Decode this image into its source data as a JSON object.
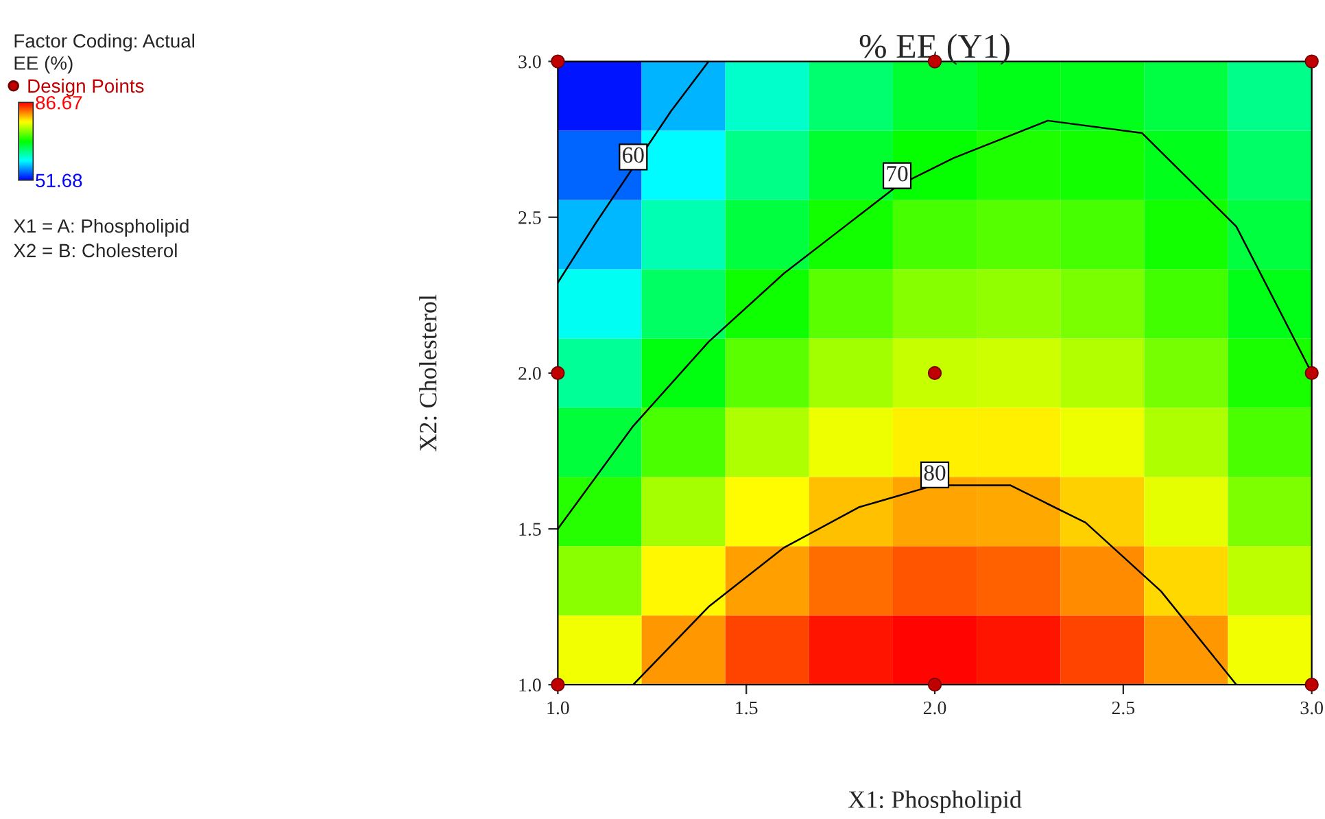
{
  "chart_data": {
    "type": "heatmap",
    "title": "% EE (Y1)",
    "xlabel": "X1: Phospholipid",
    "ylabel": "X2: Cholesterol",
    "clabel": "EE (%)",
    "annotations": [
      "Factor Coding: Actual",
      "X1 = A: Phospholipid",
      "X2 = B: Cholesterol"
    ],
    "xlim": [
      1,
      3
    ],
    "ylim": [
      1,
      3
    ],
    "xticks": [
      {
        "value": 1,
        "label": "1.0"
      },
      {
        "value": 1.5,
        "label": "1.5"
      },
      {
        "value": 2,
        "label": "2.0"
      },
      {
        "value": 2.5,
        "label": "2.5"
      },
      {
        "value": 3,
        "label": "3.0"
      }
    ],
    "yticks": [
      {
        "value": 1,
        "label": "1.0"
      },
      {
        "value": 1.5,
        "label": "1.5"
      },
      {
        "value": 2,
        "label": "2.0"
      },
      {
        "value": 2.5,
        "label": "2.5"
      },
      {
        "value": 3,
        "label": "3.0"
      }
    ],
    "clim": [
      51.68,
      86.67
    ],
    "cticks": [
      {
        "value": 51.68,
        "label": "51.68"
      },
      {
        "value": 86.67,
        "label": "86.67"
      }
    ],
    "cells": [
      [
        52.5,
        57.9,
        62.3,
        65.4,
        67.5,
        68.4,
        68.3,
        66.9,
        64.5
      ],
      [
        55.2,
        60.4,
        64.6,
        67.6,
        69.4,
        70.2,
        69.8,
        68.3,
        65.7
      ],
      [
        58.0,
        63.1,
        67.0,
        69.8,
        71.5,
        72.1,
        71.5,
        69.8,
        67.0
      ],
      [
        60.9,
        65.8,
        69.6,
        72.2,
        73.7,
        74.1,
        73.3,
        71.4,
        68.4
      ],
      [
        64.0,
        68.7,
        72.3,
        74.7,
        76.0,
        76.2,
        75.3,
        73.2,
        70.0
      ],
      [
        67.2,
        71.7,
        75.1,
        77.3,
        78.4,
        78.4,
        77.3,
        75.1,
        71.7
      ],
      [
        70.5,
        74.8,
        78.0,
        80.1,
        81.0,
        80.8,
        79.5,
        77.1,
        73.5
      ],
      [
        73.9,
        78.1,
        81.1,
        82.9,
        83.7,
        83.3,
        81.8,
        79.2,
        75.6
      ],
      [
        77.5,
        81.4,
        84.3,
        85.9,
        86.5,
        85.9,
        84.3,
        81.4,
        77.5
      ]
    ],
    "series": [
      {
        "type": "line",
        "name": "60",
        "color": "#000000",
        "x": [
          1.0,
          1.1,
          1.2,
          1.3,
          1.4
        ],
        "values": [
          2.29,
          2.48,
          2.66,
          2.84,
          3.0
        ]
      },
      {
        "type": "line",
        "name": "70",
        "color": "#000000",
        "x": [
          1.0,
          1.2,
          1.4,
          1.6,
          1.75,
          1.9,
          2.05,
          2.3,
          2.55,
          2.8,
          3.0
        ],
        "values": [
          1.5,
          1.83,
          2.1,
          2.32,
          2.46,
          2.6,
          2.69,
          2.81,
          2.77,
          2.47,
          2.0
        ]
      },
      {
        "type": "line",
        "name": "80",
        "color": "#000000",
        "x": [
          1.2,
          1.4,
          1.6,
          1.8,
          2.0,
          2.2,
          2.4,
          2.6,
          2.8
        ],
        "values": [
          1.0,
          1.25,
          1.44,
          1.57,
          1.64,
          1.64,
          1.52,
          1.3,
          1.0
        ]
      },
      {
        "type": "scatter",
        "name": "Design Points",
        "color": "#c00000",
        "marker": "circle",
        "x": [
          1,
          1,
          1,
          2,
          2,
          2,
          3,
          3,
          3
        ],
        "values": [
          1,
          2,
          3,
          1,
          2,
          3,
          1,
          2,
          3
        ]
      }
    ],
    "legend": "left",
    "grid": false
  }
}
